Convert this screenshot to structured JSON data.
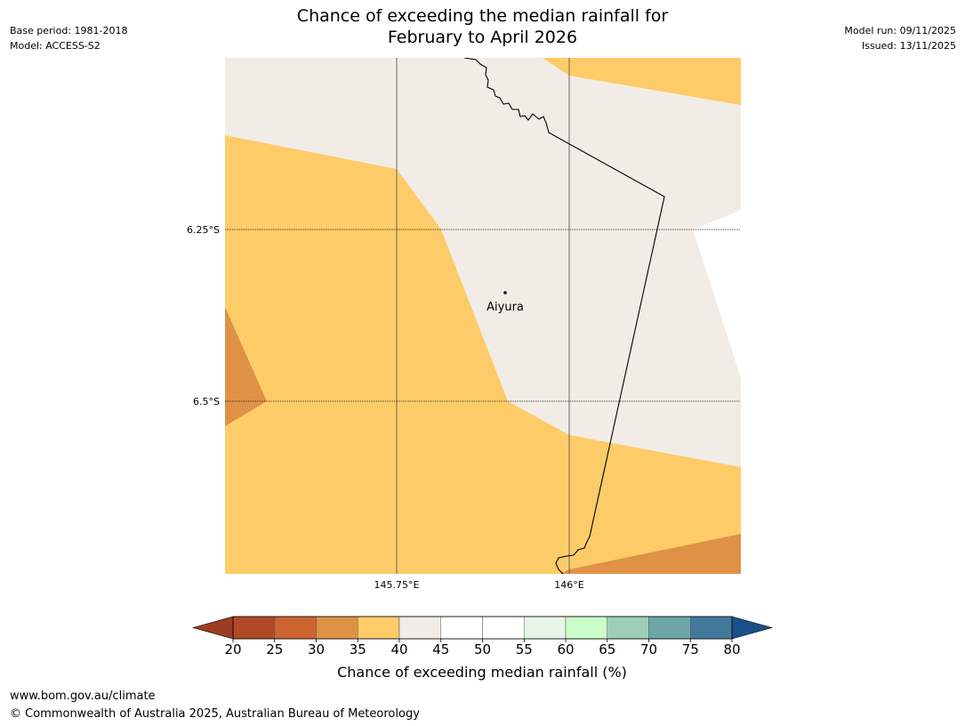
{
  "header": {
    "title_line1": "Chance of exceeding the median rainfall for",
    "title_line2": "February to April 2026",
    "base_period": "Base period: 1981-2018",
    "model": "Model: ACCESS-S2",
    "model_run": "Model run: 09/11/2025",
    "issued": "Issued: 13/11/2025"
  },
  "map": {
    "lat_labels": [
      "6.25°S",
      "6.5°S"
    ],
    "lon_labels": [
      "145.75°E",
      "146°E"
    ],
    "place": {
      "name": "Aiyura"
    }
  },
  "colorbar": {
    "title": "Chance of exceeding median rainfall (%)",
    "ticks": [
      "20",
      "25",
      "30",
      "35",
      "40",
      "45",
      "50",
      "55",
      "60",
      "65",
      "70",
      "75",
      "80"
    ],
    "colors": [
      "#b04a26",
      "#cc6431",
      "#df9246",
      "#fdcc68",
      "#f1ece6",
      "#ffffff",
      "#ffffff",
      "#e7f5e7",
      "#c9fcc9",
      "#9dcfb7",
      "#6da6a6",
      "#42799b"
    ],
    "under_color": "#9e3c22",
    "over_color": "#1a5089"
  },
  "footer": {
    "url": "www.bom.gov.au/climate",
    "copyright": "© Commonwealth of Australia 2025, Australian Bureau of Meteorology"
  }
}
